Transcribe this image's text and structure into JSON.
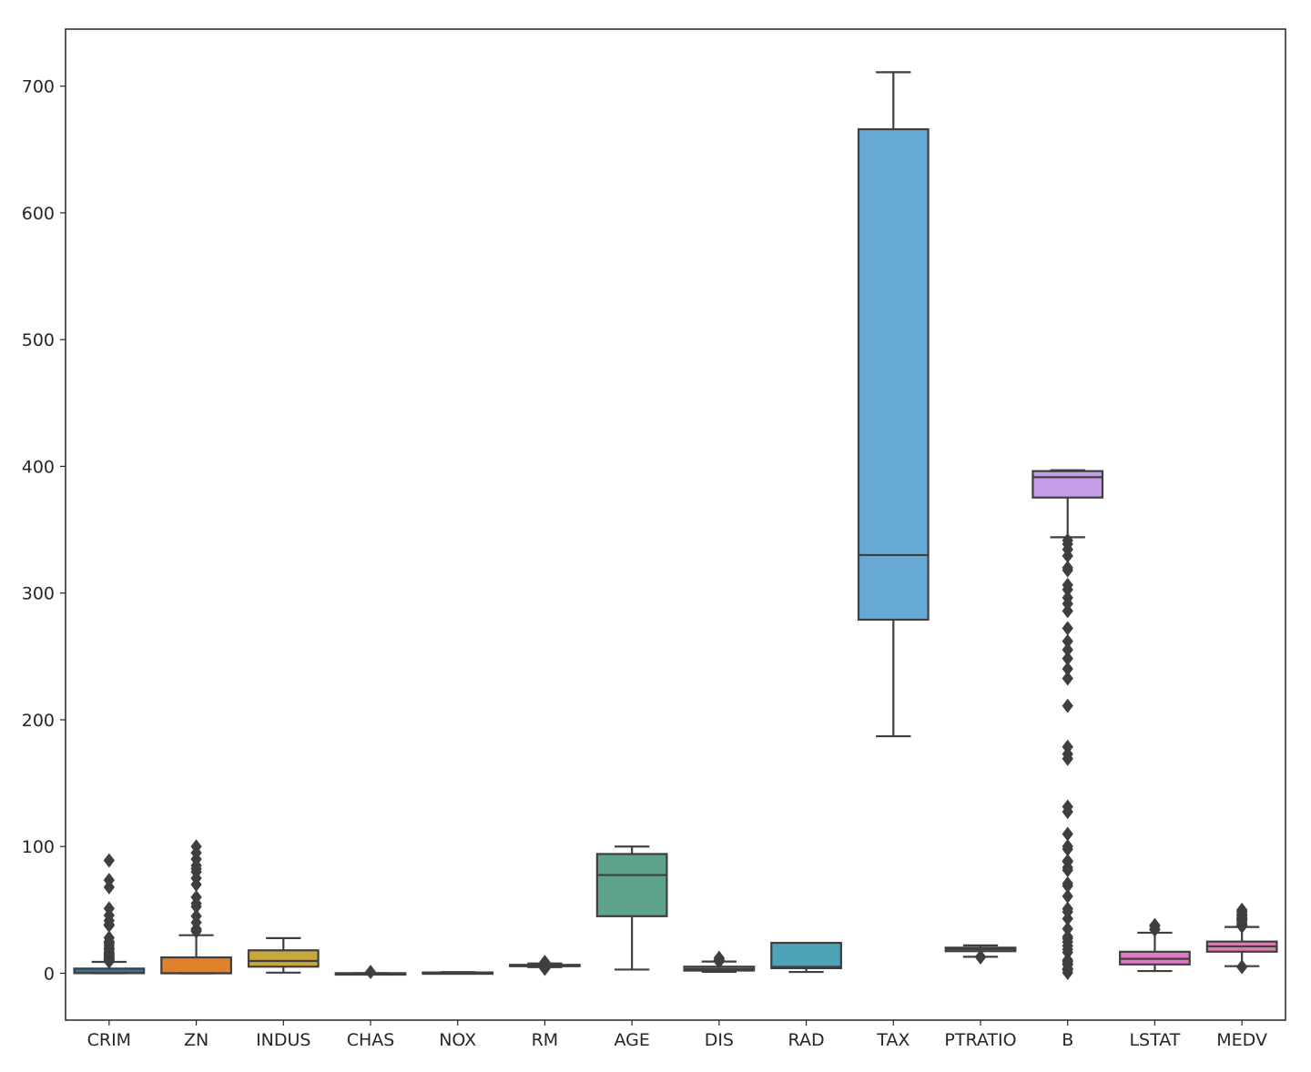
{
  "chart_data": {
    "type": "box",
    "title": "",
    "xlabel": "",
    "ylabel": "",
    "ylim": [
      -37,
      745
    ],
    "yticks": [
      0,
      100,
      200,
      300,
      400,
      500,
      600,
      700
    ],
    "grid": false,
    "categories": [
      "CRIM",
      "ZN",
      "INDUS",
      "CHAS",
      "NOX",
      "RM",
      "AGE",
      "DIS",
      "RAD",
      "TAX",
      "PTRATIO",
      "B",
      "LSTAT",
      "MEDV"
    ],
    "boxes": [
      {
        "name": "CRIM",
        "color": "#3274a1",
        "whisker_low": 0.006,
        "q1": 0.08,
        "median": 0.26,
        "q3": 3.68,
        "whisker_high": 8.98,
        "outliers": [
          9.2,
          9.9,
          10.8,
          11.1,
          11.6,
          12.0,
          12.8,
          13.5,
          14.3,
          15.0,
          15.9,
          16.8,
          18.5,
          19.6,
          20.1,
          22.0,
          23.6,
          24.4,
          25.0,
          28.0,
          37.7,
          38.4,
          41.5,
          45.7,
          51.1,
          67.9,
          73.5,
          88.98
        ]
      },
      {
        "name": "ZN",
        "color": "#e1812c",
        "whisker_low": 0,
        "q1": 0,
        "median": 0,
        "q3": 12.5,
        "whisker_high": 30,
        "outliers": [
          33,
          34,
          35,
          40,
          45,
          52.5,
          55,
          60,
          70,
          75,
          80,
          82.5,
          85,
          90,
          95,
          100
        ]
      },
      {
        "name": "INDUS",
        "color": "#c9a740",
        "whisker_low": 0.46,
        "q1": 5.19,
        "median": 9.69,
        "q3": 18.1,
        "whisker_high": 27.74,
        "outliers": []
      },
      {
        "name": "CHAS",
        "color": "#3a923a",
        "whisker_low": 0,
        "q1": 0,
        "median": 0,
        "q3": 0,
        "whisker_high": 0,
        "outliers": [
          1
        ]
      },
      {
        "name": "NOX",
        "color": "#c03d3e",
        "whisker_low": 0.385,
        "q1": 0.449,
        "median": 0.538,
        "q3": 0.624,
        "whisker_high": 0.871,
        "outliers": []
      },
      {
        "name": "RM",
        "color": "#9372b2",
        "whisker_low": 4.77,
        "q1": 5.89,
        "median": 6.21,
        "q3": 6.62,
        "whisker_high": 7.71,
        "outliers": [
          3.56,
          3.86,
          4.14,
          4.37,
          4.52,
          4.63,
          7.82,
          7.92,
          8.04,
          8.25,
          8.38,
          8.7,
          8.78
        ]
      },
      {
        "name": "AGE",
        "color": "#5da48a",
        "whisker_low": 2.9,
        "q1": 45.0,
        "median": 77.5,
        "q3": 94.1,
        "whisker_high": 100,
        "outliers": []
      },
      {
        "name": "DIS",
        "color": "#7f7f7f",
        "whisker_low": 1.13,
        "q1": 2.1,
        "median": 3.21,
        "q3": 5.19,
        "whisker_high": 9.22,
        "outliers": [
          9.23,
          9.5,
          10.0,
          10.6,
          10.7,
          12.13
        ]
      },
      {
        "name": "RAD",
        "color": "#4ea3b6",
        "whisker_low": 1,
        "q1": 4,
        "median": 5,
        "q3": 24,
        "whisker_high": 24,
        "outliers": []
      },
      {
        "name": "TAX",
        "color": "#66a9d4",
        "whisker_low": 187,
        "q1": 279,
        "median": 330,
        "q3": 666,
        "whisker_high": 711,
        "outliers": []
      },
      {
        "name": "PTRATIO",
        "color": "#e8a06a",
        "whisker_low": 13.0,
        "q1": 17.4,
        "median": 19.05,
        "q3": 20.2,
        "whisker_high": 22.0,
        "outliers": [
          12.6,
          12.6,
          13.0
        ]
      },
      {
        "name": "B",
        "color": "#c59ce8",
        "whisker_low": 344.05,
        "q1": 375.38,
        "median": 391.44,
        "q3": 396.23,
        "whisker_high": 396.9,
        "outliers": [
          0.32,
          2.52,
          3.5,
          3.65,
          6.68,
          7.68,
          9.32,
          10.48,
          16.45,
          18.82,
          21.57,
          24.65,
          27.25,
          28.79,
          35.05,
          43.06,
          48.45,
          50.92,
          60.72,
          68.95,
          70.8,
          81.33,
          83.45,
          88.01,
          88.63,
          97.95,
          100.19,
          109.85,
          127.36,
          131.42,
          169.27,
          172.91,
          178.6,
          210.97,
          232.6,
          240.16,
          248.31,
          255.23,
          261.95,
          272.21,
          285.83,
          291.55,
          296.29,
          302.76,
          306.38,
          318.01,
          320.01,
          329.34,
          334.4,
          338.63,
          341.6
        ]
      },
      {
        "name": "LSTAT",
        "color": "#e278c9",
        "whisker_low": 1.73,
        "q1": 6.95,
        "median": 11.36,
        "q3": 16.96,
        "whisker_high": 31.99,
        "outliers": [
          34.37,
          34.41,
          34.77,
          36.98,
          37.97
        ]
      },
      {
        "name": "MEDV",
        "color": "#d97faf",
        "whisker_low": 5.6,
        "q1": 17.0,
        "median": 21.2,
        "q3": 25.0,
        "whisker_high": 36.5,
        "outliers": [
          5.0,
          5.0,
          37.0,
          37.2,
          37.3,
          37.6,
          37.9,
          38.7,
          39.8,
          41.3,
          41.7,
          42.3,
          42.8,
          43.1,
          43.5,
          44.0,
          45.4,
          46.0,
          46.7,
          48.3,
          48.5,
          48.8,
          50.0
        ]
      }
    ]
  }
}
